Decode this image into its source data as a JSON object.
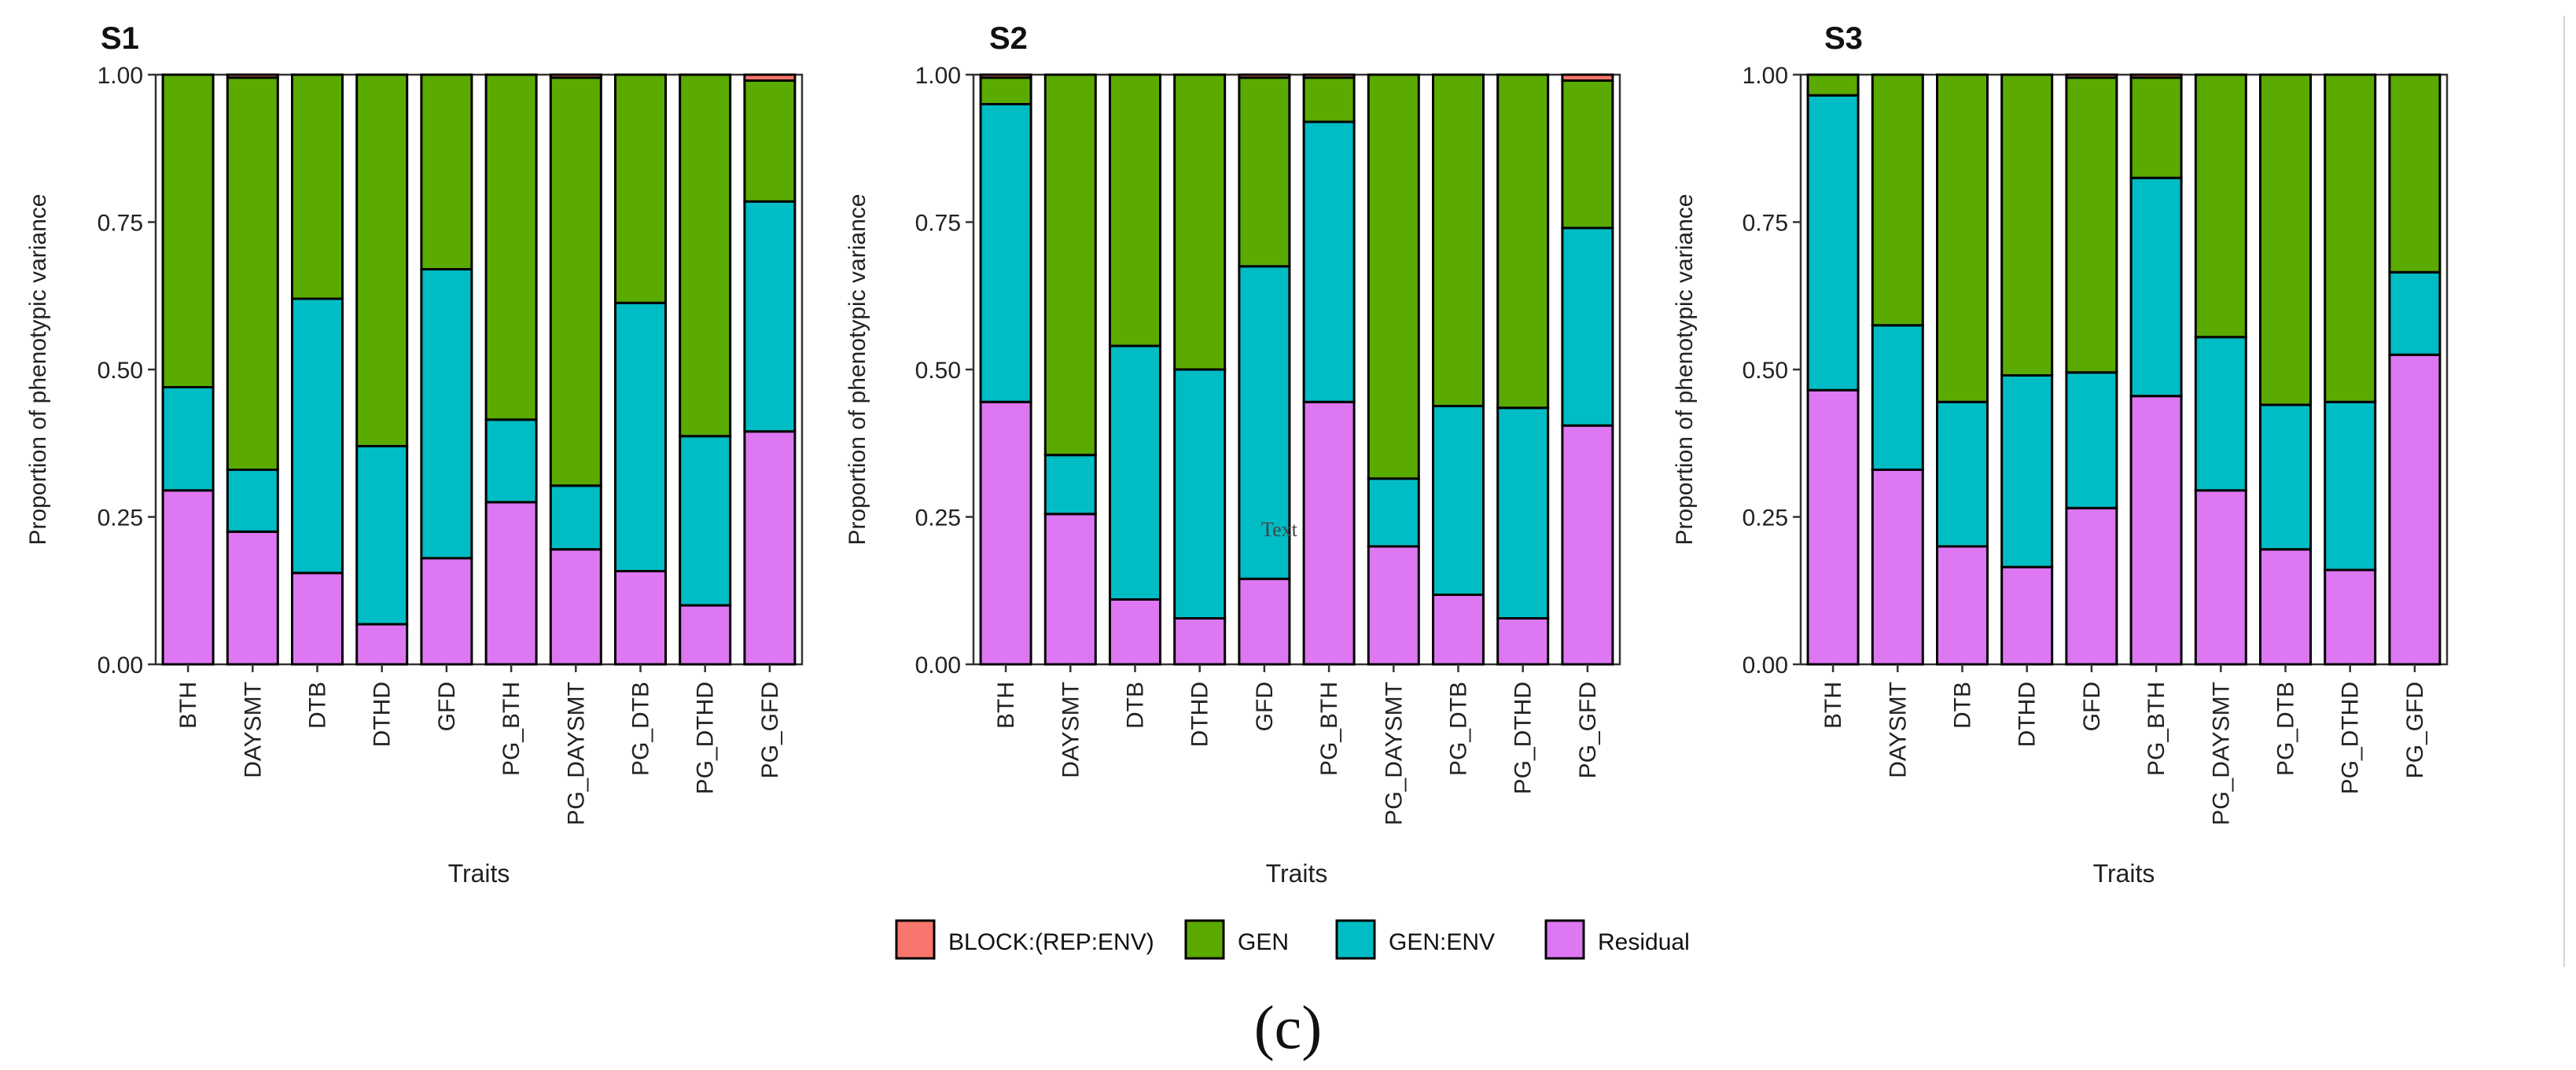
{
  "figure": {
    "caption": "(c)",
    "stray_text": "Text"
  },
  "legend": {
    "entries": [
      {
        "key": "block",
        "label": "BLOCK:(REP:ENV)",
        "color": "#F8766D"
      },
      {
        "key": "gen",
        "label": "GEN",
        "color": "#5BAA00"
      },
      {
        "key": "genenv",
        "label": "GEN:ENV",
        "color": "#00BCC4"
      },
      {
        "key": "residual",
        "label": "Residual",
        "color": "#DD77F2"
      }
    ]
  },
  "chart_data": [
    {
      "type": "bar",
      "stacked": true,
      "title": "S1",
      "xlabel": "Traits",
      "ylabel": "Proportion of phenotypic variance",
      "ylim": [
        0,
        1
      ],
      "yticks": [
        "0.00",
        "0.25",
        "0.50",
        "0.75",
        "1.00"
      ],
      "categories": [
        "BTH",
        "DAYSMT",
        "DTB",
        "DTHD",
        "GFD",
        "PG_BTH",
        "PG_DAYSMT",
        "PG_DTB",
        "PG_DTHD",
        "PG_GFD"
      ],
      "series": [
        {
          "name": "Residual",
          "values": [
            0.295,
            0.225,
            0.155,
            0.068,
            0.18,
            0.275,
            0.195,
            0.158,
            0.1,
            0.395
          ]
        },
        {
          "name": "GEN:ENV",
          "values": [
            0.175,
            0.105,
            0.465,
            0.302,
            0.49,
            0.14,
            0.108,
            0.455,
            0.287,
            0.39
          ]
        },
        {
          "name": "GEN",
          "values": [
            0.53,
            0.665,
            0.38,
            0.63,
            0.33,
            0.585,
            0.692,
            0.387,
            0.613,
            0.205
          ]
        },
        {
          "name": "BLOCK:(REP:ENV)",
          "values": [
            0,
            0.005,
            0,
            0,
            0,
            0,
            0.005,
            0,
            0,
            0.01
          ]
        }
      ]
    },
    {
      "type": "bar",
      "stacked": true,
      "title": "S2",
      "xlabel": "Traits",
      "ylabel": "Proportion of phenotypic variance",
      "ylim": [
        0,
        1
      ],
      "yticks": [
        "0.00",
        "0.25",
        "0.50",
        "0.75",
        "1.00"
      ],
      "categories": [
        "BTH",
        "DAYSMT",
        "DTB",
        "DTHD",
        "GFD",
        "PG_BTH",
        "PG_DAYSMT",
        "PG_DTB",
        "PG_DTHD",
        "PG_GFD"
      ],
      "series": [
        {
          "name": "Residual",
          "values": [
            0.445,
            0.255,
            0.11,
            0.078,
            0.145,
            0.445,
            0.2,
            0.118,
            0.078,
            0.405
          ]
        },
        {
          "name": "GEN:ENV",
          "values": [
            0.505,
            0.1,
            0.43,
            0.422,
            0.53,
            0.475,
            0.115,
            0.32,
            0.357,
            0.335
          ]
        },
        {
          "name": "GEN",
          "values": [
            0.045,
            0.645,
            0.46,
            0.5,
            0.32,
            0.075,
            0.685,
            0.562,
            0.565,
            0.25
          ]
        },
        {
          "name": "BLOCK:(REP:ENV)",
          "values": [
            0.005,
            0,
            0,
            0,
            0.005,
            0.005,
            0,
            0,
            0,
            0.01
          ]
        }
      ]
    },
    {
      "type": "bar",
      "stacked": true,
      "title": "S3",
      "xlabel": "Traits",
      "ylabel": "Proportion of phenotypic variance",
      "ylim": [
        0,
        1
      ],
      "yticks": [
        "0.00",
        "0.25",
        "0.50",
        "0.75",
        "1.00"
      ],
      "categories": [
        "BTH",
        "DAYSMT",
        "DTB",
        "DTHD",
        "GFD",
        "PG_BTH",
        "PG_DAYSMT",
        "PG_DTB",
        "PG_DTHD",
        "PG_GFD"
      ],
      "series": [
        {
          "name": "Residual",
          "values": [
            0.465,
            0.33,
            0.2,
            0.165,
            0.265,
            0.455,
            0.295,
            0.195,
            0.16,
            0.525
          ]
        },
        {
          "name": "GEN:ENV",
          "values": [
            0.5,
            0.245,
            0.245,
            0.325,
            0.23,
            0.37,
            0.26,
            0.245,
            0.285,
            0.14
          ]
        },
        {
          "name": "GEN",
          "values": [
            0.035,
            0.425,
            0.555,
            0.51,
            0.5,
            0.17,
            0.445,
            0.56,
            0.555,
            0.335
          ]
        },
        {
          "name": "BLOCK:(REP:ENV)",
          "values": [
            0,
            0,
            0,
            0,
            0.005,
            0.005,
            0,
            0,
            0,
            0
          ]
        }
      ]
    }
  ]
}
